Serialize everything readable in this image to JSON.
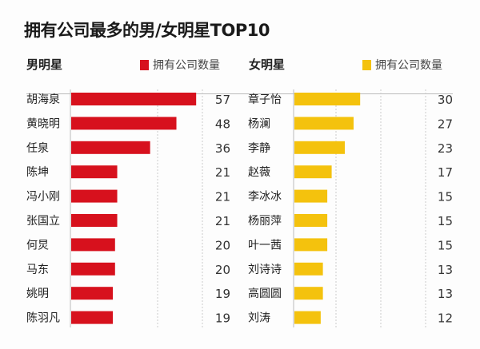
{
  "chart_data": [
    {
      "type": "bar",
      "orientation": "horizontal",
      "title": "拥有公司最多的男/女明星TOP10",
      "panel_label": "男明星",
      "legend": "拥有公司数量",
      "color": "#d7111d",
      "categories": [
        "胡海泉",
        "黄晓明",
        "任泉",
        "陈坤",
        "冯小刚",
        "张国立",
        "何炅",
        "马东",
        "姚明",
        "陈羽凡"
      ],
      "values": [
        57,
        48,
        36,
        21,
        21,
        21,
        20,
        20,
        19,
        19
      ],
      "xlim": [
        0,
        80
      ],
      "grid": true
    },
    {
      "type": "bar",
      "orientation": "horizontal",
      "panel_label": "女明星",
      "legend": "拥有公司数量",
      "color": "#f4c20d",
      "categories": [
        "章子怡",
        "杨澜",
        "李静",
        "赵薇",
        "李冰冰",
        "杨丽萍",
        "叶一茜",
        "刘诗诗",
        "高圆圆",
        "刘涛"
      ],
      "values": [
        30,
        27,
        23,
        17,
        15,
        15,
        15,
        13,
        13,
        12
      ],
      "xlim": [
        0,
        80
      ],
      "grid": true
    }
  ]
}
